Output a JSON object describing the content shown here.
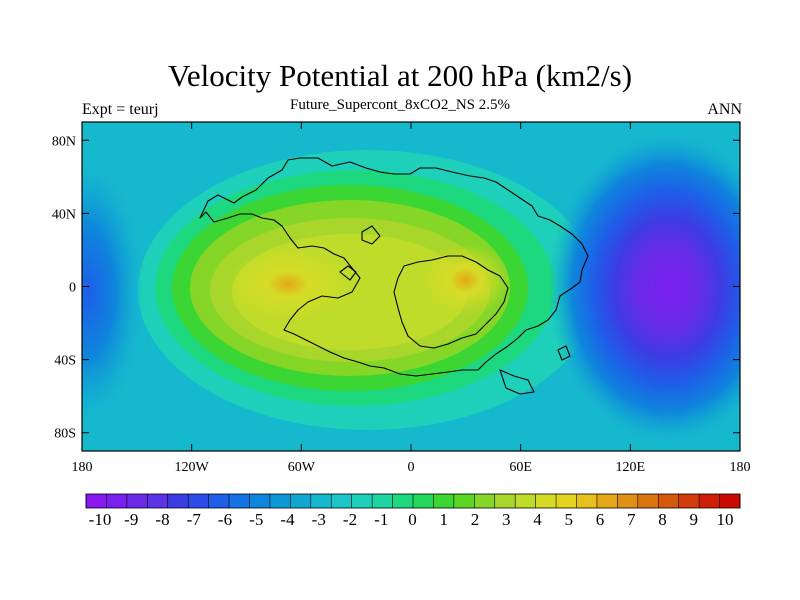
{
  "header": {
    "title": "Velocity Potential at 200 hPa (km2/s)",
    "subtitle": "Future_Supercont_8xCO2_NS 2.5%",
    "left_label": "Expt = teurj",
    "right_label": "ANN"
  },
  "map": {
    "x_ticks": [
      "180",
      "120W",
      "60W",
      "0",
      "60E",
      "120E",
      "180"
    ],
    "y_ticks": [
      "80N",
      "40N",
      "0",
      "40S",
      "80S"
    ],
    "lon_range": [
      -180,
      180
    ],
    "lat_range": [
      -90,
      90
    ],
    "field_max": {
      "lon": 36,
      "lat": 2,
      "value": 8
    },
    "field_min": {
      "lon": 140,
      "lat": 0,
      "value": -9
    },
    "secondary_max": {
      "lon": -67,
      "lat": 2,
      "value": 8
    }
  },
  "colorbar": {
    "labels": [
      "-10",
      "-9",
      "-8",
      "-7",
      "-6",
      "-5",
      "-4",
      "-3",
      "-2",
      "-1",
      "0",
      "1",
      "2",
      "3",
      "4",
      "5",
      "6",
      "7",
      "8",
      "9",
      "10"
    ],
    "colors": [
      "#8a18f0",
      "#7a20ee",
      "#6a2ae8",
      "#5a34e6",
      "#3c3ce4",
      "#2c4ce8",
      "#1e5ee8",
      "#1472e2",
      "#0e86dc",
      "#0c98d6",
      "#10a8d2",
      "#16b8ce",
      "#1cc6c8",
      "#1ecfba",
      "#1ed4a0",
      "#1ed880",
      "#24d85a",
      "#3cd634",
      "#5ed626",
      "#86d628",
      "#a8d62a",
      "#c0dc2a",
      "#d6dc26",
      "#e4d420",
      "#e6c01c",
      "#e4a818",
      "#e09012",
      "#da760e",
      "#d6580c",
      "#d23a0a",
      "#ce1e06",
      "#ca0a04"
    ],
    "range": [
      -10,
      10
    ]
  }
}
